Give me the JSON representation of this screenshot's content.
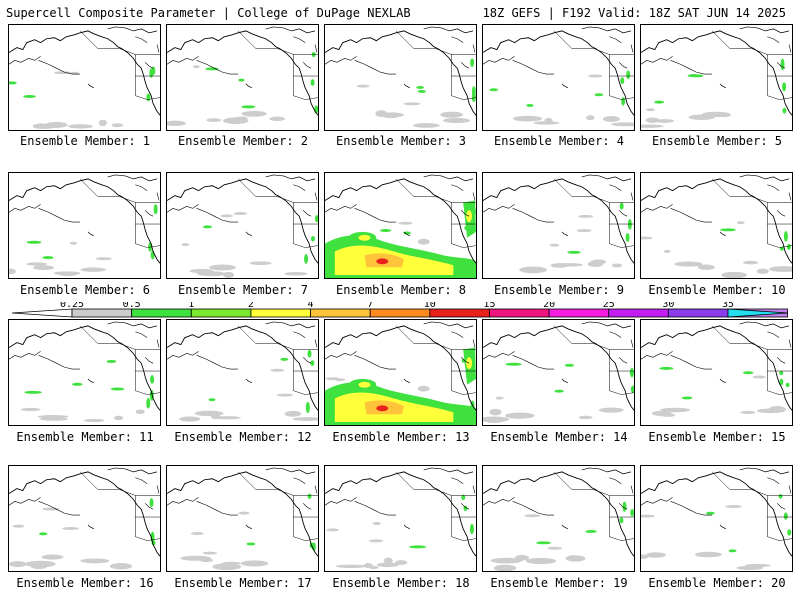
{
  "header": {
    "left_title": "Supercell Composite Parameter | College of DuPage NEXLAB",
    "right_title": "18Z GEFS | F192 Valid: 18Z SAT JUN 14 2025"
  },
  "label_prefix": "Ensemble Member: ",
  "members": [
    {
      "number": "1",
      "label": "Ensemble Member: 1",
      "activity": "low"
    },
    {
      "number": "2",
      "label": "Ensemble Member: 2",
      "activity": "low"
    },
    {
      "number": "3",
      "label": "Ensemble Member: 3",
      "activity": "low"
    },
    {
      "number": "4",
      "label": "Ensemble Member: 4",
      "activity": "low"
    },
    {
      "number": "5",
      "label": "Ensemble Member: 5",
      "activity": "low"
    },
    {
      "number": "6",
      "label": "Ensemble Member: 6",
      "activity": "low"
    },
    {
      "number": "7",
      "label": "Ensemble Member: 7",
      "activity": "low"
    },
    {
      "number": "8",
      "label": "Ensemble Member: 8",
      "activity": "high"
    },
    {
      "number": "9",
      "label": "Ensemble Member: 9",
      "activity": "low"
    },
    {
      "number": "10",
      "label": "Ensemble Member: 10",
      "activity": "low"
    },
    {
      "number": "11",
      "label": "Ensemble Member: 11",
      "activity": "low"
    },
    {
      "number": "12",
      "label": "Ensemble Member: 12",
      "activity": "low"
    },
    {
      "number": "13",
      "label": "Ensemble Member: 13",
      "activity": "high"
    },
    {
      "number": "14",
      "label": "Ensemble Member: 14",
      "activity": "low"
    },
    {
      "number": "15",
      "label": "Ensemble Member: 15",
      "activity": "low"
    },
    {
      "number": "16",
      "label": "Ensemble Member: 16",
      "activity": "low"
    },
    {
      "number": "17",
      "label": "Ensemble Member: 17",
      "activity": "low"
    },
    {
      "number": "18",
      "label": "Ensemble Member: 18",
      "activity": "low"
    },
    {
      "number": "19",
      "label": "Ensemble Member: 19",
      "activity": "low"
    },
    {
      "number": "20",
      "label": "Ensemble Member: 20",
      "activity": "low"
    }
  ],
  "colorbar": {
    "ticks": [
      "0.25",
      "0.5",
      "1",
      "2",
      "4",
      "7",
      "10",
      "15",
      "20",
      "25",
      "30",
      "35"
    ],
    "colors": [
      "#cdcdcd",
      "#3fe13f",
      "#7ce82d",
      "#ffff3a",
      "#ffc43a",
      "#ff8a1e",
      "#e8221a",
      "#f0147f",
      "#f61ce0",
      "#c21ef0",
      "#8c3cec",
      "#c080ec",
      "#22e0f0"
    ]
  },
  "map_style": {
    "coast_color": "#000000",
    "border_color": "#000000"
  }
}
